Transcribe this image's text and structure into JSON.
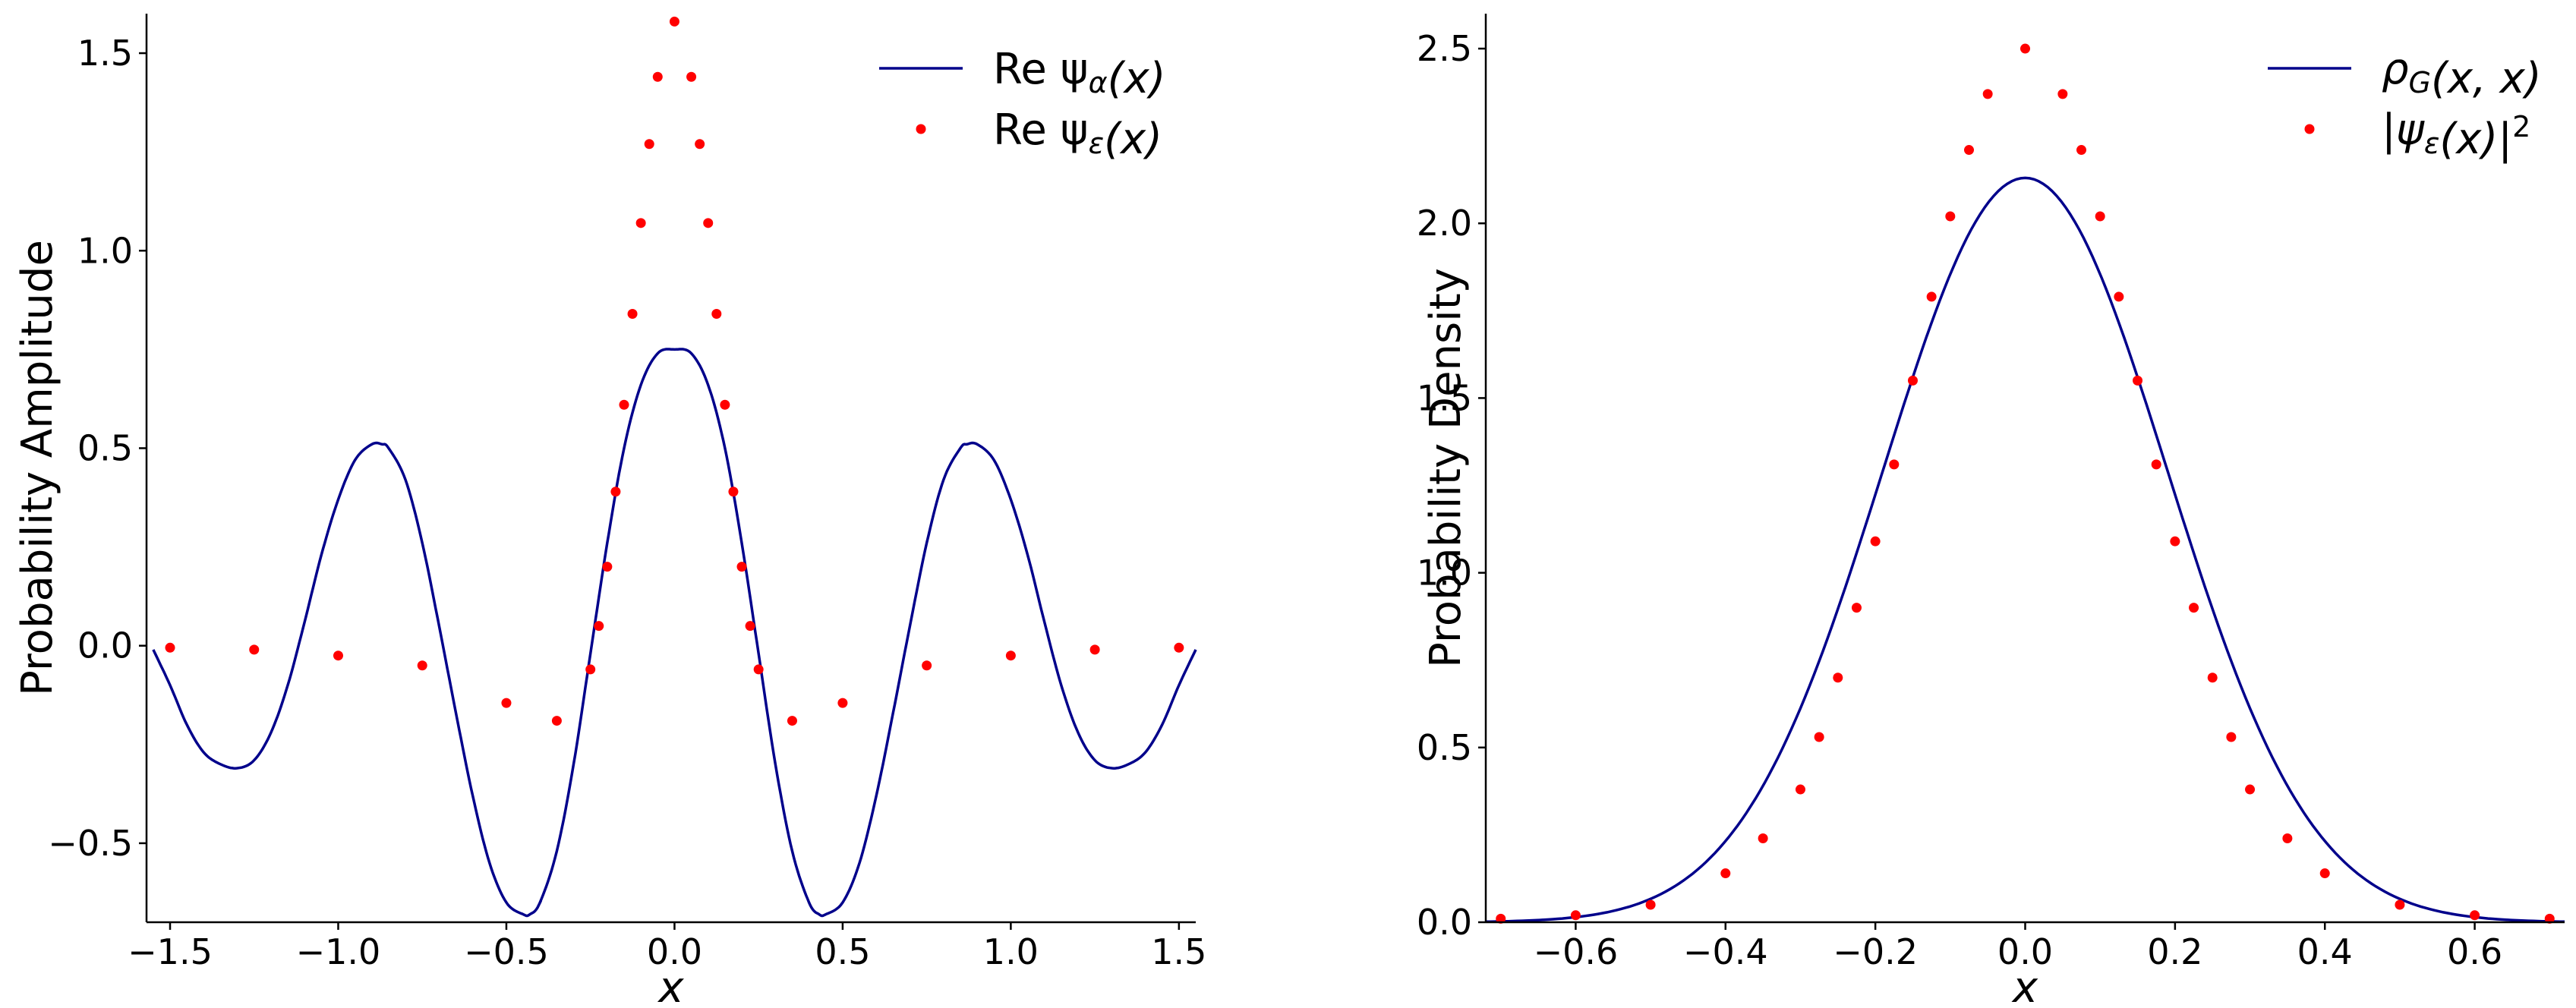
{
  "chart_data": [
    {
      "type": "line",
      "title": "",
      "xlabel": "x",
      "ylabel": "Probability Amplitude",
      "xlim": [
        -1.57,
        1.55
      ],
      "ylim": [
        -0.7,
        1.6
      ],
      "xticks": [
        -1.5,
        -1.0,
        -0.5,
        0.0,
        0.5,
        1.0,
        1.5
      ],
      "xtick_labels": [
        "−1.5",
        "−1.0",
        "−0.5",
        "0.0",
        "0.5",
        "1.0",
        "1.5"
      ],
      "yticks": [
        -0.5,
        0.0,
        0.5,
        1.0,
        1.5
      ],
      "ytick_labels": [
        "−0.5",
        "0.0",
        "0.5",
        "1.0",
        "1.5"
      ],
      "grid": false,
      "legend_placement": "top-right",
      "series": [
        {
          "name": "Re ψ_α(x)",
          "legend_label": "Re ψα(x)",
          "style": "line",
          "color": "#00008b",
          "x": [
            -1.55,
            -1.5,
            -1.45,
            -1.4,
            -1.35,
            -1.3,
            -1.25,
            -1.2,
            -1.15,
            -1.1,
            -1.05,
            -1.0,
            -0.95,
            -0.9,
            -0.87,
            -0.85,
            -0.8,
            -0.75,
            -0.7,
            -0.65,
            -0.6,
            -0.55,
            -0.5,
            -0.45,
            -0.43,
            -0.4,
            -0.35,
            -0.3,
            -0.25,
            -0.2,
            -0.15,
            -0.1,
            -0.05,
            0.0,
            0.05,
            0.1,
            0.15,
            0.2,
            0.25,
            0.3,
            0.35,
            0.4,
            0.43,
            0.45,
            0.5,
            0.55,
            0.6,
            0.65,
            0.7,
            0.75,
            0.8,
            0.85,
            0.87,
            0.9,
            0.95,
            1.0,
            1.05,
            1.1,
            1.15,
            1.2,
            1.25,
            1.3,
            1.35,
            1.4,
            1.45,
            1.5,
            1.55
          ],
          "y": [
            -0.01,
            -0.1,
            -0.2,
            -0.27,
            -0.3,
            -0.31,
            -0.29,
            -0.22,
            -0.1,
            0.06,
            0.23,
            0.37,
            0.47,
            0.51,
            0.51,
            0.5,
            0.42,
            0.26,
            0.05,
            -0.17,
            -0.38,
            -0.55,
            -0.65,
            -0.68,
            -0.68,
            -0.65,
            -0.52,
            -0.3,
            -0.02,
            0.26,
            0.5,
            0.66,
            0.74,
            0.75,
            0.74,
            0.66,
            0.5,
            0.26,
            -0.02,
            -0.3,
            -0.52,
            -0.65,
            -0.68,
            -0.68,
            -0.65,
            -0.55,
            -0.38,
            -0.17,
            0.05,
            0.26,
            0.42,
            0.5,
            0.51,
            0.51,
            0.47,
            0.37,
            0.23,
            0.06,
            -0.1,
            -0.22,
            -0.29,
            -0.31,
            -0.3,
            -0.27,
            -0.2,
            -0.1,
            -0.01
          ]
        },
        {
          "name": "Re ψ_ε(x)",
          "legend_label": "Re ψε(x)",
          "style": "dots",
          "color": "#ff0000",
          "x": [
            -1.5,
            -1.25,
            -1.0,
            -0.75,
            -0.5,
            -0.35,
            -0.25,
            -0.225,
            -0.2,
            -0.175,
            -0.15,
            -0.125,
            -0.1,
            -0.075,
            -0.05,
            0.0,
            0.05,
            0.075,
            0.1,
            0.125,
            0.15,
            0.175,
            0.2,
            0.225,
            0.25,
            0.35,
            0.5,
            0.75,
            1.0,
            1.25,
            1.5
          ],
          "y": [
            -0.005,
            -0.01,
            -0.025,
            -0.05,
            -0.145,
            -0.19,
            -0.06,
            0.05,
            0.2,
            0.39,
            0.61,
            0.84,
            1.07,
            1.27,
            1.44,
            1.58,
            1.44,
            1.27,
            1.07,
            0.84,
            0.61,
            0.39,
            0.2,
            0.05,
            -0.06,
            -0.19,
            -0.145,
            -0.05,
            -0.025,
            -0.01,
            -0.005
          ]
        }
      ]
    },
    {
      "type": "line",
      "title": "",
      "xlabel": "x",
      "ylabel": "Probability Density",
      "xlim": [
        -0.72,
        0.72
      ],
      "ylim": [
        0.0,
        2.6
      ],
      "xticks": [
        -0.6,
        -0.4,
        -0.2,
        0.0,
        0.2,
        0.4,
        0.6
      ],
      "xtick_labels": [
        "−0.6",
        "−0.4",
        "−0.2",
        "0.0",
        "0.2",
        "0.4",
        "0.6"
      ],
      "yticks": [
        0.0,
        0.5,
        1.0,
        1.5,
        2.0,
        2.5
      ],
      "ytick_labels": [
        "0.0",
        "0.5",
        "1.0",
        "1.5",
        "2.0",
        "2.5"
      ],
      "grid": false,
      "legend_placement": "top-right",
      "series": [
        {
          "name": "ρ_G(x, x)",
          "legend_label": "ρG(x, x)",
          "style": "line",
          "color": "#00008b",
          "gaussian": {
            "amplitude": 2.13,
            "sigma": 0.19
          },
          "x_range": [
            -0.72,
            0.72
          ]
        },
        {
          "name": "|ψ_ε(x)|^2",
          "legend_label": "|ψε(x)|2",
          "style": "dots",
          "color": "#ff0000",
          "x": [
            -0.7,
            -0.6,
            -0.5,
            -0.4,
            -0.35,
            -0.3,
            -0.275,
            -0.25,
            -0.225,
            -0.2,
            -0.175,
            -0.15,
            -0.125,
            -0.1,
            -0.075,
            -0.05,
            0.0,
            0.05,
            0.075,
            0.1,
            0.125,
            0.15,
            0.175,
            0.2,
            0.225,
            0.25,
            0.275,
            0.3,
            0.35,
            0.4,
            0.5,
            0.6,
            0.7
          ],
          "y": [
            0.01,
            0.02,
            0.05,
            0.14,
            0.24,
            0.38,
            0.53,
            0.7,
            0.9,
            1.09,
            1.31,
            1.55,
            1.79,
            2.02,
            2.21,
            2.37,
            2.5,
            2.37,
            2.21,
            2.02,
            1.79,
            1.55,
            1.31,
            1.09,
            0.9,
            0.7,
            0.53,
            0.38,
            0.24,
            0.14,
            0.05,
            0.02,
            0.01
          ]
        }
      ]
    }
  ]
}
